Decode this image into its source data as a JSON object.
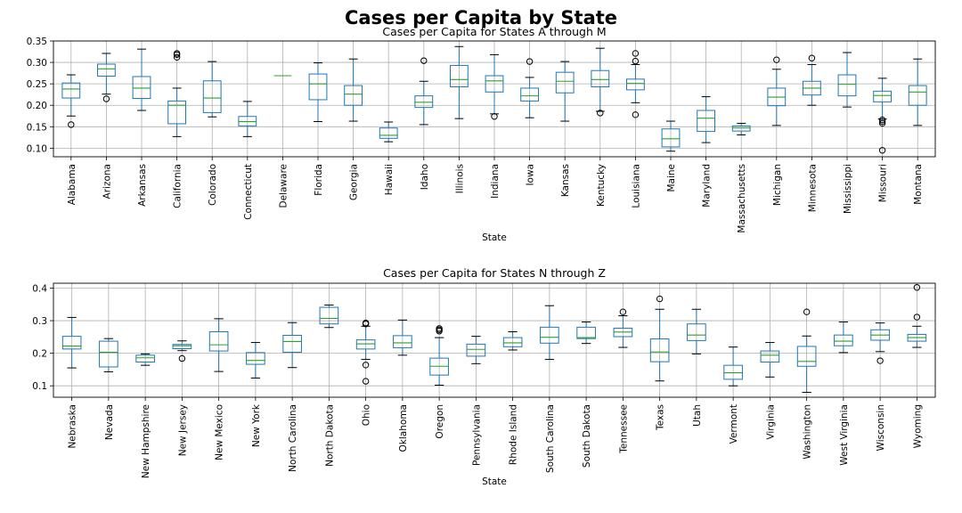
{
  "figure_title": "Cases per Capita by State",
  "colors": {
    "box": "#1f77b4",
    "median": "#2ca02c",
    "grid": "#b0b0b0",
    "whisker": "#000000"
  },
  "chart_data": [
    {
      "type": "box",
      "title": "Cases per Capita for States A through M",
      "xlabel": "State",
      "ylabel": "",
      "ylim": [
        0.08,
        0.35
      ],
      "yticks": [
        "0.10",
        "0.15",
        "0.20",
        "0.25",
        "0.30",
        "0.35"
      ],
      "grid": true,
      "boxes": [
        {
          "name": "Alabama",
          "wlo": 0.175,
          "q1": 0.217,
          "med": 0.238,
          "q3": 0.252,
          "whi": 0.271,
          "fliers": [
            0.155
          ]
        },
        {
          "name": "Arizona",
          "wlo": 0.226,
          "q1": 0.268,
          "med": 0.285,
          "q3": 0.296,
          "whi": 0.321,
          "fliers": [
            0.215
          ]
        },
        {
          "name": "Arkansas",
          "wlo": 0.188,
          "q1": 0.216,
          "med": 0.24,
          "q3": 0.267,
          "whi": 0.331,
          "fliers": []
        },
        {
          "name": "California",
          "wlo": 0.127,
          "q1": 0.157,
          "med": 0.2,
          "q3": 0.21,
          "whi": 0.24,
          "fliers": [
            0.312,
            0.318,
            0.321
          ]
        },
        {
          "name": "Colorado",
          "wlo": 0.173,
          "q1": 0.183,
          "med": 0.217,
          "q3": 0.257,
          "whi": 0.302,
          "fliers": []
        },
        {
          "name": "Connecticut",
          "wlo": 0.127,
          "q1": 0.152,
          "med": 0.162,
          "q3": 0.174,
          "whi": 0.209,
          "fliers": []
        },
        {
          "name": "Delaware",
          "wlo": 0.269,
          "q1": 0.269,
          "med": 0.269,
          "q3": 0.269,
          "whi": 0.269,
          "fliers": []
        },
        {
          "name": "Florida",
          "wlo": 0.162,
          "q1": 0.213,
          "med": 0.25,
          "q3": 0.273,
          "whi": 0.299,
          "fliers": []
        },
        {
          "name": "Georgia",
          "wlo": 0.163,
          "q1": 0.2,
          "med": 0.226,
          "q3": 0.246,
          "whi": 0.308,
          "fliers": []
        },
        {
          "name": "Hawaii",
          "wlo": 0.115,
          "q1": 0.123,
          "med": 0.13,
          "q3": 0.147,
          "whi": 0.161,
          "fliers": []
        },
        {
          "name": "Idaho",
          "wlo": 0.155,
          "q1": 0.195,
          "med": 0.207,
          "q3": 0.222,
          "whi": 0.256,
          "fliers": [
            0.304
          ]
        },
        {
          "name": "Illinois",
          "wlo": 0.169,
          "q1": 0.243,
          "med": 0.26,
          "q3": 0.293,
          "whi": 0.337,
          "fliers": []
        },
        {
          "name": "Indiana",
          "wlo": 0.18,
          "q1": 0.231,
          "med": 0.257,
          "q3": 0.269,
          "whi": 0.318,
          "fliers": [
            0.174
          ]
        },
        {
          "name": "Iowa",
          "wlo": 0.171,
          "q1": 0.21,
          "med": 0.222,
          "q3": 0.24,
          "whi": 0.265,
          "fliers": [
            0.302
          ]
        },
        {
          "name": "Kansas",
          "wlo": 0.163,
          "q1": 0.229,
          "med": 0.256,
          "q3": 0.277,
          "whi": 0.302,
          "fliers": []
        },
        {
          "name": "Kentucky",
          "wlo": 0.186,
          "q1": 0.243,
          "med": 0.26,
          "q3": 0.281,
          "whi": 0.333,
          "fliers": [
            0.182
          ]
        },
        {
          "name": "Louisiana",
          "wlo": 0.206,
          "q1": 0.236,
          "med": 0.251,
          "q3": 0.261,
          "whi": 0.295,
          "fliers": [
            0.178,
            0.303,
            0.321
          ]
        },
        {
          "name": "Maine",
          "wlo": 0.093,
          "q1": 0.103,
          "med": 0.122,
          "q3": 0.145,
          "whi": 0.163,
          "fliers": []
        },
        {
          "name": "Maryland",
          "wlo": 0.113,
          "q1": 0.139,
          "med": 0.17,
          "q3": 0.188,
          "whi": 0.22,
          "fliers": []
        },
        {
          "name": "Massachusetts",
          "wlo": 0.131,
          "q1": 0.14,
          "med": 0.147,
          "q3": 0.152,
          "whi": 0.158,
          "fliers": []
        },
        {
          "name": "Michigan",
          "wlo": 0.153,
          "q1": 0.199,
          "med": 0.219,
          "q3": 0.24,
          "whi": 0.284,
          "fliers": [
            0.306
          ]
        },
        {
          "name": "Minnesota",
          "wlo": 0.2,
          "q1": 0.224,
          "med": 0.24,
          "q3": 0.256,
          "whi": 0.295,
          "fliers": [
            0.31
          ]
        },
        {
          "name": "Mississippi",
          "wlo": 0.196,
          "q1": 0.222,
          "med": 0.249,
          "q3": 0.271,
          "whi": 0.323,
          "fliers": []
        },
        {
          "name": "Missouri",
          "wlo": 0.168,
          "q1": 0.208,
          "med": 0.223,
          "q3": 0.233,
          "whi": 0.263,
          "fliers": [
            0.095,
            0.158,
            0.162,
            0.166
          ]
        },
        {
          "name": "Montana",
          "wlo": 0.153,
          "q1": 0.2,
          "med": 0.231,
          "q3": 0.246,
          "whi": 0.308,
          "fliers": []
        }
      ]
    },
    {
      "type": "box",
      "title": "Cases per Capita for States N through Z",
      "xlabel": "State",
      "ylabel": "",
      "ylim": [
        0.065,
        0.415
      ],
      "yticks": [
        "0.1",
        "0.2",
        "0.3",
        "0.4"
      ],
      "grid": true,
      "boxes": [
        {
          "name": "Nebraska",
          "wlo": 0.155,
          "q1": 0.213,
          "med": 0.222,
          "q3": 0.252,
          "whi": 0.31,
          "fliers": []
        },
        {
          "name": "Nevada",
          "wlo": 0.143,
          "q1": 0.158,
          "med": 0.203,
          "q3": 0.237,
          "whi": 0.245,
          "fliers": []
        },
        {
          "name": "New Hampshire",
          "wlo": 0.163,
          "q1": 0.173,
          "med": 0.186,
          "q3": 0.194,
          "whi": 0.198,
          "fliers": []
        },
        {
          "name": "New Jersey",
          "wlo": 0.208,
          "q1": 0.214,
          "med": 0.223,
          "q3": 0.227,
          "whi": 0.238,
          "fliers": [
            0.184
          ]
        },
        {
          "name": "New Mexico",
          "wlo": 0.144,
          "q1": 0.207,
          "med": 0.226,
          "q3": 0.266,
          "whi": 0.306,
          "fliers": []
        },
        {
          "name": "New York",
          "wlo": 0.124,
          "q1": 0.166,
          "med": 0.178,
          "q3": 0.202,
          "whi": 0.233,
          "fliers": []
        },
        {
          "name": "North Carolina",
          "wlo": 0.156,
          "q1": 0.203,
          "med": 0.236,
          "q3": 0.255,
          "whi": 0.294,
          "fliers": []
        },
        {
          "name": "North Dakota",
          "wlo": 0.279,
          "q1": 0.29,
          "med": 0.307,
          "q3": 0.341,
          "whi": 0.348,
          "fliers": []
        },
        {
          "name": "Ohio",
          "wlo": 0.181,
          "q1": 0.213,
          "med": 0.229,
          "q3": 0.241,
          "whi": 0.283,
          "fliers": [
            0.114,
            0.164,
            0.29,
            0.293
          ]
        },
        {
          "name": "Oklahoma",
          "wlo": 0.194,
          "q1": 0.217,
          "med": 0.232,
          "q3": 0.254,
          "whi": 0.302,
          "fliers": []
        },
        {
          "name": "Oregon",
          "wlo": 0.102,
          "q1": 0.133,
          "med": 0.16,
          "q3": 0.185,
          "whi": 0.248,
          "fliers": [
            0.268,
            0.272,
            0.276
          ]
        },
        {
          "name": "Pennsylvania",
          "wlo": 0.168,
          "q1": 0.191,
          "med": 0.212,
          "q3": 0.228,
          "whi": 0.252,
          "fliers": []
        },
        {
          "name": "Rhode Island",
          "wlo": 0.21,
          "q1": 0.22,
          "med": 0.232,
          "q3": 0.248,
          "whi": 0.266,
          "fliers": []
        },
        {
          "name": "South Carolina",
          "wlo": 0.181,
          "q1": 0.231,
          "med": 0.249,
          "q3": 0.28,
          "whi": 0.346,
          "fliers": []
        },
        {
          "name": "South Dakota",
          "wlo": 0.23,
          "q1": 0.245,
          "med": 0.248,
          "q3": 0.28,
          "whi": 0.296,
          "fliers": []
        },
        {
          "name": "Tennessee",
          "wlo": 0.218,
          "q1": 0.251,
          "med": 0.265,
          "q3": 0.277,
          "whi": 0.315,
          "fliers": [
            0.327
          ]
        },
        {
          "name": "Texas",
          "wlo": 0.115,
          "q1": 0.174,
          "med": 0.204,
          "q3": 0.244,
          "whi": 0.335,
          "fliers": [
            0.367
          ]
        },
        {
          "name": "Utah",
          "wlo": 0.198,
          "q1": 0.239,
          "med": 0.256,
          "q3": 0.29,
          "whi": 0.335,
          "fliers": []
        },
        {
          "name": "Vermont",
          "wlo": 0.1,
          "q1": 0.12,
          "med": 0.14,
          "q3": 0.163,
          "whi": 0.219,
          "fliers": []
        },
        {
          "name": "Virginia",
          "wlo": 0.127,
          "q1": 0.173,
          "med": 0.194,
          "q3": 0.207,
          "whi": 0.233,
          "fliers": []
        },
        {
          "name": "Washington",
          "wlo": 0.08,
          "q1": 0.16,
          "med": 0.175,
          "q3": 0.221,
          "whi": 0.253,
          "fliers": [
            0.327
          ]
        },
        {
          "name": "West Virginia",
          "wlo": 0.202,
          "q1": 0.223,
          "med": 0.237,
          "q3": 0.256,
          "whi": 0.296,
          "fliers": []
        },
        {
          "name": "Wisconsin",
          "wlo": 0.205,
          "q1": 0.24,
          "med": 0.256,
          "q3": 0.272,
          "whi": 0.293,
          "fliers": [
            0.177
          ]
        },
        {
          "name": "Wyoming",
          "wlo": 0.218,
          "q1": 0.237,
          "med": 0.248,
          "q3": 0.258,
          "whi": 0.283,
          "fliers": [
            0.311,
            0.402
          ]
        }
      ]
    }
  ]
}
